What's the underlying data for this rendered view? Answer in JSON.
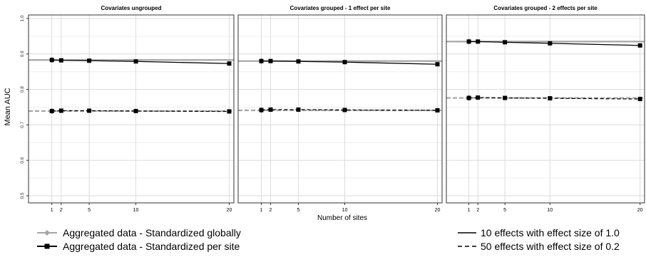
{
  "chart_data": {
    "type": "line",
    "ylabel": "Mean AUC",
    "xlabel": "Number of sites",
    "x": [
      1,
      2,
      5,
      10,
      20
    ],
    "x_ticks": [
      "1",
      "2",
      "5",
      "10",
      "20"
    ],
    "xlim": [
      -1.5,
      20.5
    ],
    "ylim": [
      0.48,
      1.01
    ],
    "y_ticks": [
      "0.5",
      "0.6",
      "0.7",
      "0.8",
      "0.9",
      "1.0"
    ],
    "grid": true,
    "legend": {
      "placement": "bottom",
      "marker_entries": [
        {
          "label": "Aggregated data - Standardized globally",
          "marker": "diamond",
          "color": "#a6a6a6"
        },
        {
          "label": "Aggregated data - Standardized per site",
          "marker": "square",
          "color": "#000000"
        }
      ],
      "line_entries": [
        {
          "label": "10 effects with effect size of 1.0",
          "dash": "solid"
        },
        {
          "label": "50 effects with effect size of 0.2",
          "dash": "dashed"
        }
      ]
    },
    "panels": [
      {
        "title": "Covariates ungrouped",
        "series": [
          {
            "method": "global",
            "effects": "10x1.0",
            "values": [
              0.883,
              0.883,
              0.883,
              0.883,
              0.883
            ]
          },
          {
            "method": "per-site",
            "effects": "10x1.0",
            "values": [
              0.883,
              0.882,
              0.881,
              0.879,
              0.873
            ]
          },
          {
            "method": "global",
            "effects": "50x0.2",
            "values": [
              0.739,
              0.739,
              0.739,
              0.739,
              0.739
            ]
          },
          {
            "method": "per-site",
            "effects": "50x0.2",
            "values": [
              0.739,
              0.74,
              0.74,
              0.739,
              0.738
            ]
          }
        ]
      },
      {
        "title": "Covariates grouped - 1 effect per site",
        "series": [
          {
            "method": "global",
            "effects": "10x1.0",
            "values": [
              0.88,
              0.88,
              0.88,
              0.88,
              0.88
            ]
          },
          {
            "method": "per-site",
            "effects": "10x1.0",
            "values": [
              0.88,
              0.88,
              0.879,
              0.877,
              0.871
            ]
          },
          {
            "method": "global",
            "effects": "50x0.2",
            "values": [
              0.741,
              0.741,
              0.741,
              0.741,
              0.741
            ]
          },
          {
            "method": "per-site",
            "effects": "50x0.2",
            "values": [
              0.742,
              0.743,
              0.743,
              0.742,
              0.741
            ]
          }
        ]
      },
      {
        "title": "Covariates grouped - 2 effects per site",
        "series": [
          {
            "method": "global",
            "effects": "10x1.0",
            "values": [
              0.935,
              0.935,
              0.935,
              0.935,
              0.935
            ]
          },
          {
            "method": "per-site",
            "effects": "10x1.0",
            "values": [
              0.935,
              0.935,
              0.933,
              0.93,
              0.924
            ]
          },
          {
            "method": "global",
            "effects": "50x0.2",
            "values": [
              0.776,
              0.776,
              0.776,
              0.776,
              0.776
            ]
          },
          {
            "method": "per-site",
            "effects": "50x0.2",
            "values": [
              0.776,
              0.777,
              0.776,
              0.775,
              0.773
            ]
          }
        ]
      }
    ]
  }
}
